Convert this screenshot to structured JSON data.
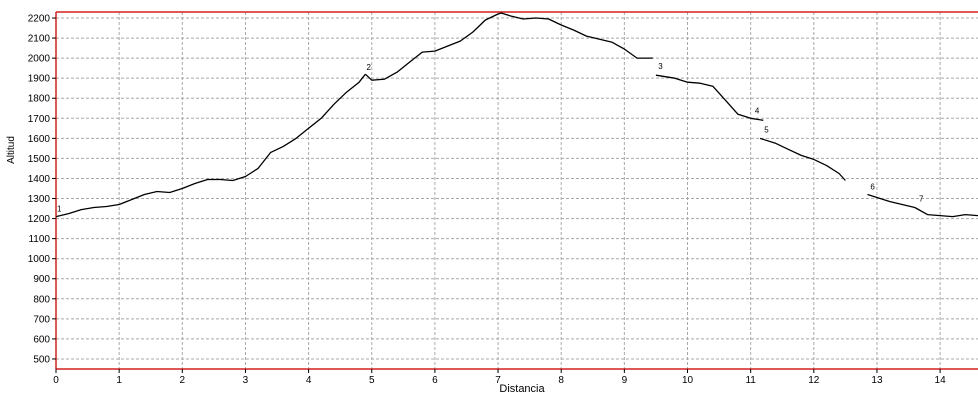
{
  "chart_data": {
    "type": "line",
    "xlabel": "Distancia",
    "ylabel": "Altitud",
    "xlim": [
      0,
      14.6
    ],
    "ylim": [
      450,
      2230
    ],
    "x_ticks": [
      0,
      1,
      2,
      3,
      4,
      5,
      6,
      7,
      8,
      9,
      10,
      11,
      12,
      13,
      14
    ],
    "y_ticks": [
      500,
      600,
      700,
      800,
      900,
      1000,
      1100,
      1200,
      1300,
      1400,
      1500,
      1600,
      1700,
      1800,
      1900,
      2000,
      2100,
      2200
    ],
    "grid": true,
    "colors": {
      "line": "#000000",
      "grid": "#a8a8a8",
      "border": "#d42020",
      "axis": "#000000"
    },
    "segments": [
      {
        "x": [
          0,
          0.2,
          0.4,
          0.6,
          0.8,
          1.0,
          1.2,
          1.4,
          1.6,
          1.8,
          2.0,
          2.2,
          2.4,
          2.6,
          2.8,
          3.0,
          3.2,
          3.4,
          3.6,
          3.8,
          4.0,
          4.2,
          4.4,
          4.6,
          4.8,
          4.9
        ],
        "y": [
          1210,
          1225,
          1245,
          1255,
          1260,
          1270,
          1295,
          1320,
          1335,
          1330,
          1350,
          1375,
          1395,
          1395,
          1390,
          1410,
          1450,
          1530,
          1560,
          1600,
          1650,
          1700,
          1770,
          1830,
          1880,
          1920
        ]
      },
      {
        "x": [
          4.9,
          5.0,
          5.2,
          5.4,
          5.6,
          5.8,
          6.0,
          6.2,
          6.4,
          6.6,
          6.8,
          7.0,
          7.05,
          7.2,
          7.4,
          7.6,
          7.8,
          8.0,
          8.2,
          8.4,
          8.6,
          8.8,
          9.0,
          9.2,
          9.45
        ],
        "y": [
          1920,
          1890,
          1895,
          1930,
          1980,
          2030,
          2035,
          2060,
          2085,
          2130,
          2190,
          2220,
          2225,
          2210,
          2195,
          2200,
          2195,
          2165,
          2140,
          2110,
          2095,
          2080,
          2045,
          2000,
          2000
        ]
      },
      {
        "x": [
          9.5,
          9.8,
          10.0,
          10.2,
          10.4,
          10.6,
          10.8,
          11.0,
          11.2
        ],
        "y": [
          1915,
          1900,
          1880,
          1875,
          1860,
          1790,
          1720,
          1700,
          1690
        ]
      },
      {
        "x": [
          11.15,
          11.4,
          11.6,
          11.8,
          12.0,
          12.2,
          12.4,
          12.5
        ],
        "y": [
          1600,
          1575,
          1545,
          1515,
          1495,
          1465,
          1425,
          1390
        ]
      },
      {
        "x": [
          12.85,
          13.0,
          13.2,
          13.4,
          13.6,
          13.8,
          14.0,
          14.2,
          14.4,
          14.6
        ],
        "y": [
          1320,
          1305,
          1285,
          1270,
          1255,
          1220,
          1215,
          1210,
          1220,
          1215
        ]
      }
    ],
    "annotations": [
      {
        "label": "1",
        "x": 0.0,
        "y": 1235
      },
      {
        "label": "2",
        "x": 4.9,
        "y": 1940
      },
      {
        "label": "3",
        "x": 9.52,
        "y": 1945
      },
      {
        "label": "4",
        "x": 11.05,
        "y": 1725
      },
      {
        "label": "5",
        "x": 11.2,
        "y": 1630
      },
      {
        "label": "6",
        "x": 12.88,
        "y": 1345
      },
      {
        "label": "7",
        "x": 13.65,
        "y": 1285
      }
    ]
  }
}
